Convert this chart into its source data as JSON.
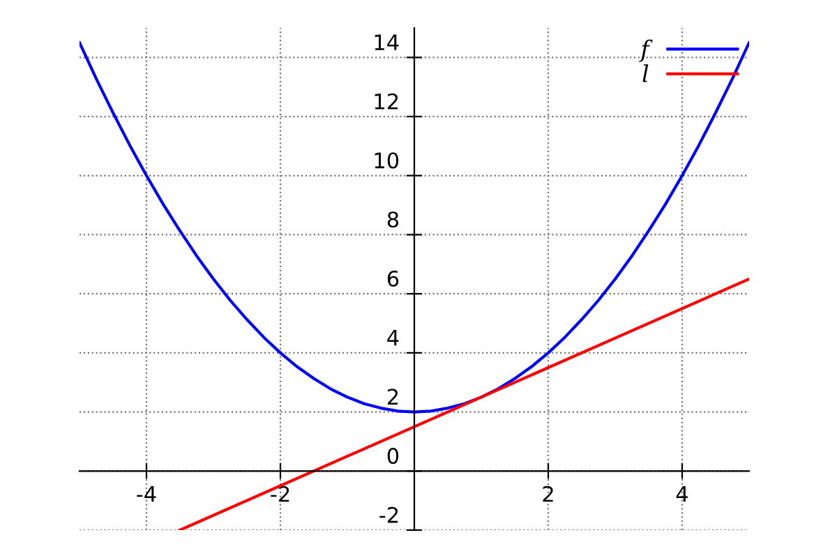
{
  "chart_data": {
    "type": "line",
    "xlim": [
      -5,
      5
    ],
    "ylim": [
      -2,
      15
    ],
    "xticks": [
      -4,
      -2,
      2,
      4
    ],
    "yticks": [
      -2,
      0,
      2,
      4,
      6,
      8,
      10,
      12,
      14
    ],
    "grid": true,
    "legend": "top right",
    "line_style": "solid",
    "marker": "none",
    "series": [
      {
        "name": "f",
        "color": "#0000ff",
        "x": [
          -5,
          -4.75,
          -4.5,
          -4.25,
          -4,
          -3.75,
          -3.5,
          -3.25,
          -3,
          -2.75,
          -2.5,
          -2.25,
          -2,
          -1.75,
          -1.5,
          -1.25,
          -1,
          -0.75,
          -0.5,
          -0.25,
          0,
          0.25,
          0.5,
          0.75,
          1,
          1.25,
          1.5,
          1.75,
          2,
          2.25,
          2.5,
          2.75,
          3,
          3.25,
          3.5,
          3.75,
          4,
          4.25,
          4.5,
          4.75,
          5
        ],
        "values": [
          14.5,
          13.28,
          12.13,
          11.03,
          10,
          9.03,
          8.13,
          7.28,
          6.5,
          5.78,
          5.13,
          4.53,
          4,
          3.53,
          3.13,
          2.78,
          2.5,
          2.28,
          2.13,
          2.03,
          2,
          2.03,
          2.13,
          2.28,
          2.5,
          2.78,
          3.13,
          3.53,
          4,
          4.53,
          5.13,
          5.78,
          6.5,
          7.28,
          8.13,
          9.03,
          10,
          11.03,
          12.13,
          13.28,
          14.5
        ]
      },
      {
        "name": "l",
        "color": "#ff0000",
        "x": [
          -3.5,
          5
        ],
        "values": [
          -2,
          6.5
        ]
      }
    ]
  }
}
